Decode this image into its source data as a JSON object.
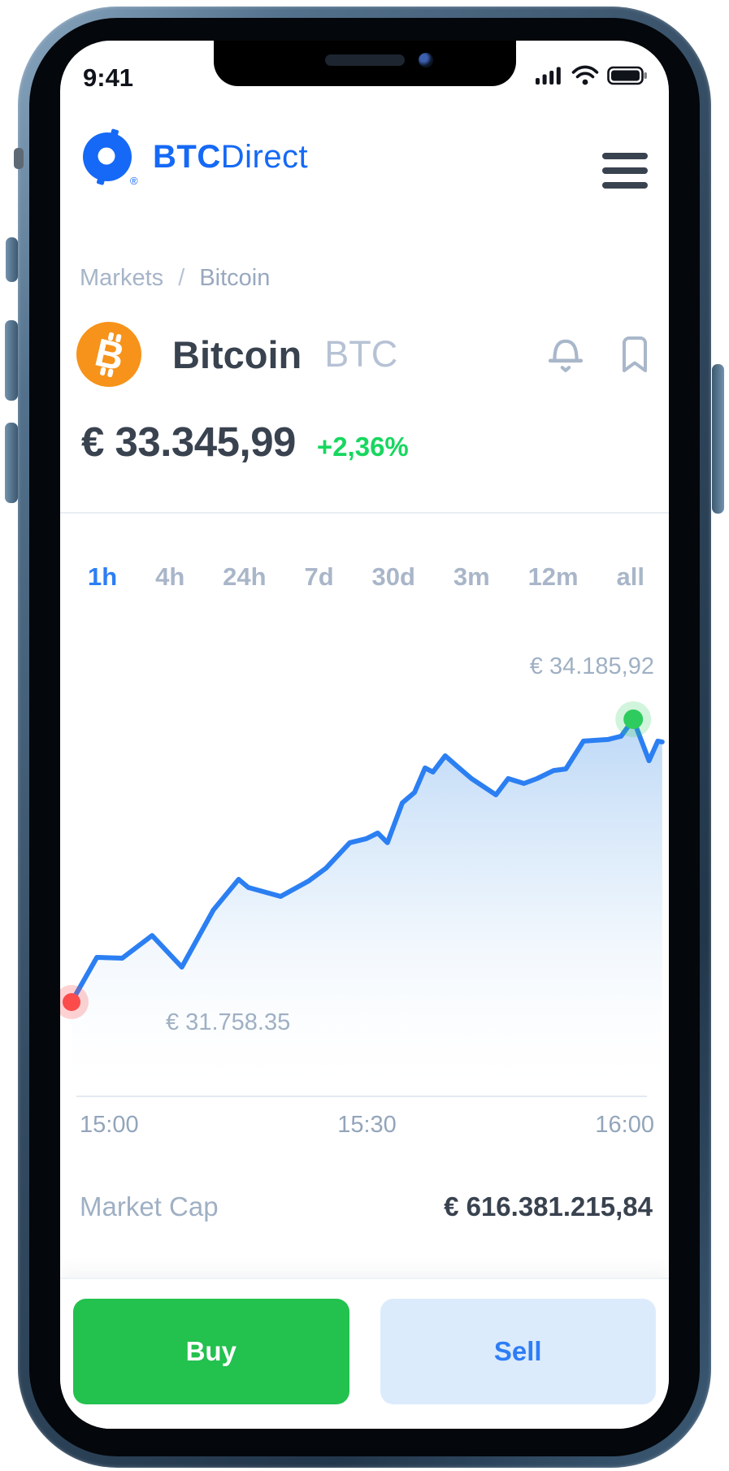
{
  "device": {
    "time": "9:41",
    "status_icons": [
      "signal-4-bars",
      "wifi",
      "battery-full"
    ]
  },
  "header": {
    "brand_bold": "BTC",
    "brand_light": "Direct",
    "menu_icon": "hamburger"
  },
  "breadcrumb": {
    "root": "Markets",
    "separator": "/",
    "current": "Bitcoin"
  },
  "asset": {
    "name": "Bitcoin",
    "ticker": "BTC",
    "icon": "bitcoin-coin-orange",
    "price": "€ 33.345,99",
    "change": "+2,36%",
    "change_positive": true
  },
  "tabs": {
    "items": [
      "1h",
      "4h",
      "24h",
      "7d",
      "30d",
      "3m",
      "12m",
      "all"
    ],
    "active": "1h"
  },
  "chart_data": {
    "type": "area",
    "title": "",
    "x_ticks": [
      "15:00",
      "15:30",
      "16:00"
    ],
    "ylim": [
      31500,
      34400
    ],
    "grid": false,
    "legend": false,
    "line_color": "#2b7ff2",
    "fill": "vertical blue gradient fading to white",
    "start_point": {
      "label": "€ 31.758.35",
      "value": 31758.35,
      "marker": "red-dot"
    },
    "end_point": {
      "label": "€ 34.185,92",
      "value": 34185.92,
      "marker": "green-dot"
    },
    "series": [
      {
        "name": "BTC/EUR",
        "x_unit": "minutes_after_15:00",
        "points": [
          [
            0,
            31758.35
          ],
          [
            2.9,
            32142
          ],
          [
            5.8,
            32135
          ],
          [
            9.2,
            32330
          ],
          [
            12.6,
            32058
          ],
          [
            16.2,
            32547
          ],
          [
            19.1,
            32812
          ],
          [
            20.2,
            32742
          ],
          [
            23.9,
            32665
          ],
          [
            27.1,
            32798
          ],
          [
            29.1,
            32909
          ],
          [
            31.8,
            33126
          ],
          [
            33.7,
            33161
          ],
          [
            35.0,
            33209
          ],
          [
            36.1,
            33126
          ],
          [
            37.8,
            33468
          ],
          [
            39.2,
            33558
          ],
          [
            40.4,
            33768
          ],
          [
            41.3,
            33733
          ],
          [
            42.7,
            33872
          ],
          [
            44.2,
            33774
          ],
          [
            45.7,
            33677
          ],
          [
            48.5,
            33537
          ],
          [
            49.9,
            33677
          ],
          [
            51.7,
            33635
          ],
          [
            53.2,
            33677
          ],
          [
            55.1,
            33746
          ],
          [
            56.5,
            33760
          ],
          [
            58.5,
            33998
          ],
          [
            61.3,
            34012
          ],
          [
            62.8,
            34040
          ],
          [
            64.2,
            34185.92
          ],
          [
            66.0,
            33830
          ],
          [
            67.0,
            33998
          ],
          [
            67.5,
            33991
          ]
        ]
      }
    ]
  },
  "market_cap": {
    "label": "Market Cap",
    "value": "€ 616.381.215,84"
  },
  "actions": {
    "buy": "Buy",
    "sell": "Sell"
  },
  "colors": {
    "accent_blue": "#2d7ef5",
    "logo_blue": "#1569f6",
    "positive_green": "#17d75f",
    "buy_green": "#23c14e",
    "sell_bg": "#dcebfc",
    "text_dark": "#39424f",
    "text_muted": "#9fb0c4",
    "coin_orange": "#f7931a",
    "dot_red": "#fb4b4b",
    "dot_green": "#2ecc5e"
  }
}
